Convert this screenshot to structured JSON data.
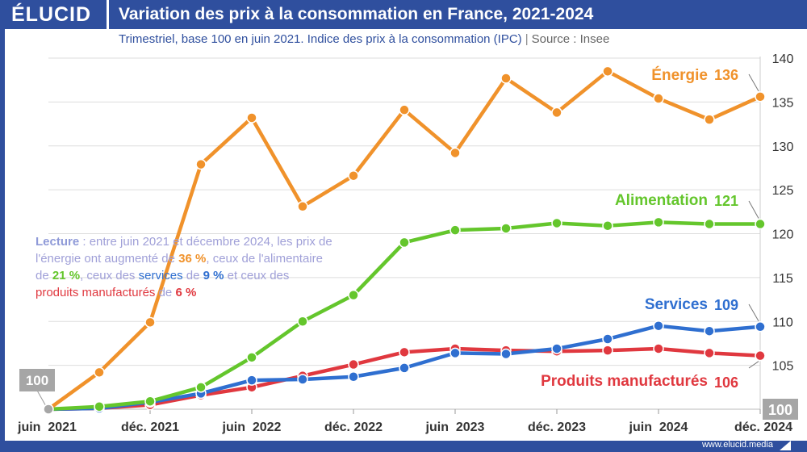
{
  "header": {
    "logo": "ÉLUCID",
    "title": "Variation des prix à la consommation en France, 2021-2024"
  },
  "subtitle": {
    "main": "Trimestriel, base 100 en juin 2021. Indice des prix à la consommation (IPC)",
    "separator": "|",
    "source": "Source : Insee"
  },
  "footer": {
    "site": "www.elucid.media"
  },
  "note": {
    "lecture_label": "Lecture",
    "t1": " : entre juin 2021 et décembre 2024, les prix de l'énergie ont augmenté de ",
    "v_energie": "36 %",
    "t2": ", ceux de l'alimentaire de ",
    "v_alim": "21 %",
    "t3": ", ceux des ",
    "services_word": "services",
    "t4": " de ",
    "v_services": "9 %",
    "t5": " et ceux des ",
    "produits_word": "produits manufacturés",
    "t6": " de ",
    "v_produits": "6 %"
  },
  "colors": {
    "brand": "#2f4f9e",
    "energie": "#f0922b",
    "alimentation": "#64c62c",
    "services": "#2f6fd0",
    "produits": "#e0383f",
    "grid": "#dddddd",
    "axis_text": "#333333"
  },
  "chart_data": {
    "type": "line",
    "title": "Variation des prix à la consommation en France, 2021-2024",
    "xlabel": "",
    "ylabel": "",
    "ylim": [
      100,
      140
    ],
    "yticks": [
      105,
      110,
      115,
      120,
      125,
      130,
      135,
      140
    ],
    "x_ticks": [
      "juin  2021",
      "déc. 2021",
      "juin  2022",
      "déc. 2022",
      "juin  2023",
      "déc. 2023",
      "juin  2024",
      "déc. 2024"
    ],
    "start_badge": "100",
    "end_badge": "100",
    "x": [
      "juin 2021",
      "sept. 2021",
      "déc. 2021",
      "mars 2022",
      "juin 2022",
      "sept. 2022",
      "déc. 2022",
      "mars 2023",
      "juin 2023",
      "sept. 2023",
      "déc. 2023",
      "mars 2024",
      "juin 2024",
      "sept. 2024",
      "déc. 2024"
    ],
    "series": [
      {
        "name": "Énergie",
        "key": "energie",
        "end_label": "136",
        "values": [
          100,
          104.2,
          109.9,
          127.9,
          133.2,
          123.1,
          126.6,
          134.1,
          129.2,
          137.7,
          133.8,
          138.5,
          135.4,
          133,
          135.6
        ]
      },
      {
        "name": "Alimentation",
        "key": "alimentation",
        "end_label": "121",
        "values": [
          100,
          100.3,
          100.9,
          102.5,
          105.9,
          110,
          113,
          119,
          120.4,
          120.6,
          121.2,
          120.9,
          121.3,
          121.1,
          121.1
        ]
      },
      {
        "name": "Services",
        "key": "services",
        "end_label": "109",
        "values": [
          100,
          100.1,
          100.8,
          101.8,
          103.3,
          103.4,
          103.7,
          104.7,
          106.4,
          106.3,
          106.9,
          108,
          109.5,
          108.9,
          109.4
        ]
      },
      {
        "name": "Produits manufacturés",
        "key": "produits",
        "end_label": "106",
        "values": [
          100,
          100.1,
          100.5,
          101.6,
          102.5,
          103.8,
          105.1,
          106.5,
          106.9,
          106.7,
          106.6,
          106.7,
          106.9,
          106.4,
          106.1
        ]
      }
    ]
  }
}
